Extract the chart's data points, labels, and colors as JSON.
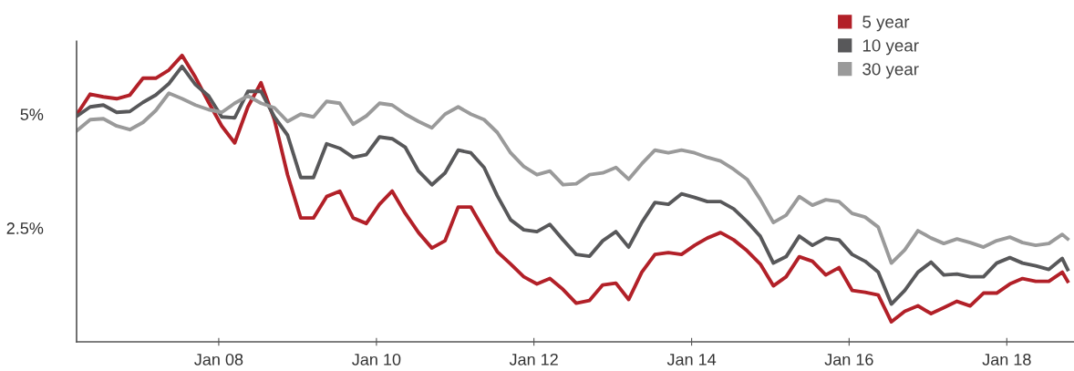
{
  "chart_data": {
    "type": "line",
    "x": [
      "2006-03-15",
      "2006-05-15",
      "2006-07-15",
      "2006-09-15",
      "2006-11-15",
      "2007-01-15",
      "2007-03-15",
      "2007-05-15",
      "2007-07-15",
      "2007-09-15",
      "2007-11-15",
      "2008-01-15",
      "2008-03-15",
      "2008-05-15",
      "2008-07-15",
      "2008-09-15",
      "2008-11-15",
      "2009-01-15",
      "2009-03-15",
      "2009-05-15",
      "2009-07-15",
      "2009-09-15",
      "2009-11-15",
      "2010-01-15",
      "2010-03-15",
      "2010-05-15",
      "2010-07-15",
      "2010-09-15",
      "2010-11-15",
      "2011-01-15",
      "2011-03-15",
      "2011-05-15",
      "2011-07-15",
      "2011-09-15",
      "2011-11-15",
      "2012-01-15",
      "2012-03-15",
      "2012-05-15",
      "2012-07-15",
      "2012-09-15",
      "2012-11-15",
      "2013-01-15",
      "2013-03-15",
      "2013-05-15",
      "2013-07-15",
      "2013-09-15",
      "2013-11-15",
      "2014-01-15",
      "2014-03-15",
      "2014-05-15",
      "2014-07-15",
      "2014-09-15",
      "2014-11-15",
      "2015-01-15",
      "2015-03-15",
      "2015-05-15",
      "2015-07-15",
      "2015-09-15",
      "2015-11-15",
      "2016-01-15",
      "2016-03-15",
      "2016-05-15",
      "2016-07-15",
      "2016-09-15",
      "2016-11-15",
      "2017-01-15",
      "2017-03-15",
      "2017-05-15",
      "2017-07-15",
      "2017-09-15",
      "2017-11-15",
      "2018-01-15",
      "2018-03-15",
      "2018-05-15",
      "2018-07-15",
      "2018-09-15",
      "2018-10-10"
    ],
    "series": [
      {
        "name": "5 year",
        "color": "#b22028",
        "values": [
          5.0,
          5.44,
          5.38,
          5.34,
          5.42,
          5.79,
          5.79,
          5.97,
          6.29,
          5.81,
          5.26,
          4.74,
          4.37,
          5.16,
          5.69,
          4.88,
          3.67,
          2.72,
          2.72,
          3.19,
          3.31,
          2.72,
          2.6,
          3.02,
          3.31,
          2.82,
          2.4,
          2.06,
          2.22,
          2.96,
          2.96,
          2.46,
          1.98,
          1.71,
          1.43,
          1.27,
          1.39,
          1.15,
          0.85,
          0.91,
          1.25,
          1.29,
          0.93,
          1.53,
          1.92,
          1.96,
          1.92,
          2.12,
          2.28,
          2.4,
          2.24,
          2.0,
          1.71,
          1.23,
          1.43,
          1.87,
          1.77,
          1.47,
          1.63,
          1.13,
          1.09,
          1.03,
          0.44,
          0.67,
          0.79,
          0.62,
          0.75,
          0.89,
          0.79,
          1.07,
          1.07,
          1.27,
          1.39,
          1.33,
          1.33,
          1.53,
          1.33
        ]
      },
      {
        "name": "10 year",
        "color": "#58585a",
        "values": [
          4.96,
          5.16,
          5.2,
          5.04,
          5.06,
          5.26,
          5.42,
          5.67,
          6.05,
          5.65,
          5.4,
          4.94,
          4.92,
          5.5,
          5.5,
          4.94,
          4.54,
          3.61,
          3.61,
          4.35,
          4.25,
          4.05,
          4.11,
          4.5,
          4.46,
          4.27,
          3.75,
          3.45,
          3.71,
          4.21,
          4.15,
          3.83,
          3.21,
          2.68,
          2.46,
          2.42,
          2.58,
          2.24,
          1.92,
          1.88,
          2.22,
          2.42,
          2.08,
          2.62,
          3.06,
          3.02,
          3.25,
          3.17,
          3.08,
          3.08,
          2.92,
          2.64,
          2.32,
          1.73,
          1.87,
          2.32,
          2.12,
          2.28,
          2.24,
          1.92,
          1.77,
          1.53,
          0.83,
          1.13,
          1.53,
          1.75,
          1.47,
          1.49,
          1.43,
          1.43,
          1.73,
          1.85,
          1.73,
          1.67,
          1.59,
          1.83,
          1.59
        ]
      },
      {
        "name": "30 year",
        "color": "#9a9a9a",
        "values": [
          4.64,
          4.88,
          4.9,
          4.74,
          4.66,
          4.82,
          5.08,
          5.46,
          5.34,
          5.2,
          5.1,
          5.04,
          5.24,
          5.4,
          5.24,
          5.14,
          4.84,
          5.0,
          4.94,
          5.28,
          5.24,
          4.78,
          4.96,
          5.24,
          5.2,
          5.0,
          4.84,
          4.7,
          5.0,
          5.16,
          5.0,
          4.88,
          4.6,
          4.15,
          3.85,
          3.67,
          3.75,
          3.45,
          3.47,
          3.67,
          3.71,
          3.83,
          3.57,
          3.91,
          4.21,
          4.15,
          4.21,
          4.15,
          4.05,
          3.97,
          3.79,
          3.57,
          3.13,
          2.62,
          2.78,
          3.19,
          3.0,
          3.12,
          3.08,
          2.82,
          2.74,
          2.52,
          1.73,
          2.02,
          2.44,
          2.28,
          2.16,
          2.26,
          2.18,
          2.08,
          2.22,
          2.3,
          2.18,
          2.12,
          2.16,
          2.36,
          2.26
        ]
      }
    ],
    "xlim": [
      "2006-03-13",
      "2018-11-05"
    ],
    "xticks": [
      {
        "value": "2008-01-01",
        "label": "Jan 08"
      },
      {
        "value": "2010-01-01",
        "label": "Jan 10"
      },
      {
        "value": "2012-01-01",
        "label": "Jan 12"
      },
      {
        "value": "2014-01-01",
        "label": "Jan 14"
      },
      {
        "value": "2016-01-01",
        "label": "Jan 16"
      },
      {
        "value": "2018-01-01",
        "label": "Jan 18"
      }
    ],
    "ylim": [
      0,
      6.6
    ],
    "yticks": [
      {
        "value": 2.5,
        "label": "2.5%"
      },
      {
        "value": 5,
        "label": "5%"
      }
    ],
    "grid": false,
    "legend": "top right",
    "marker": "none",
    "line_style": "solid"
  }
}
